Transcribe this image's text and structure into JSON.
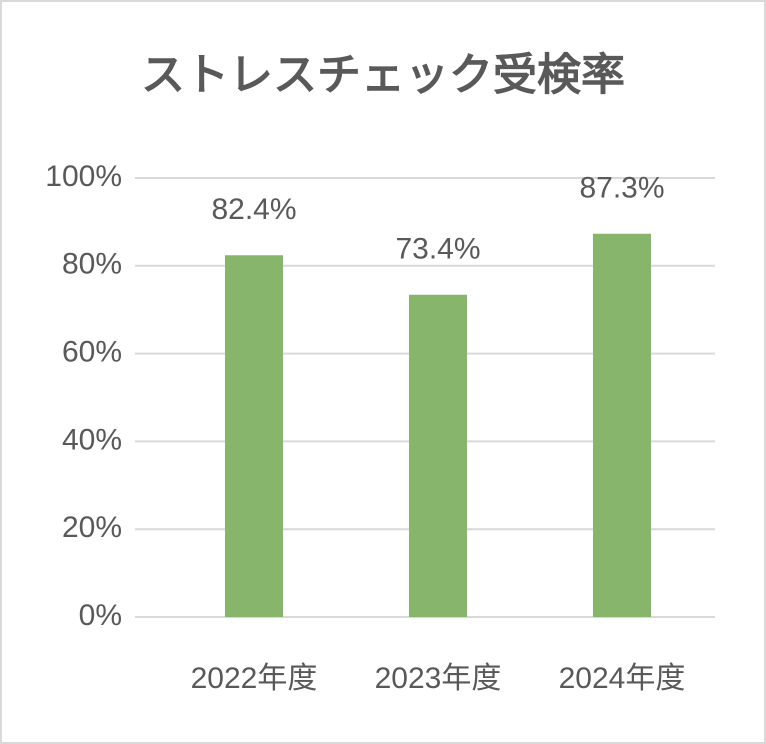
{
  "chart_data": {
    "type": "bar",
    "title": "ストレスチェック受検率",
    "categories": [
      "2022年度",
      "2023年度",
      "2024年度"
    ],
    "values": [
      82.4,
      73.4,
      87.3
    ],
    "value_labels": [
      "82.4%",
      "73.4%",
      "87.3%"
    ],
    "color": "#87b56b",
    "ylim": [
      0,
      100
    ],
    "yticks": [
      {
        "value": 0,
        "label": "0%"
      },
      {
        "value": 20,
        "label": "20%"
      },
      {
        "value": 40,
        "label": "40%"
      },
      {
        "value": 60,
        "label": "60%"
      },
      {
        "value": 80,
        "label": "80%"
      },
      {
        "value": 100,
        "label": "100%"
      }
    ],
    "grid": true
  }
}
